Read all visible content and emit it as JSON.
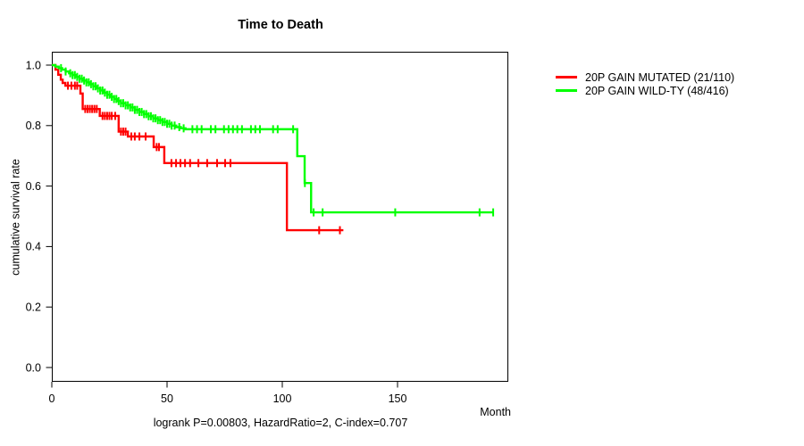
{
  "chart_data": {
    "type": "line",
    "subtype": "kaplan-meier-step",
    "title": "Time to Death",
    "ylabel": "cumulative survival rate",
    "xlabel": "Month",
    "annotation": "logrank P=0.00803, HazardRatio=2, C-index=0.707",
    "x_ticks": [
      0,
      50,
      100,
      150
    ],
    "y_ticks": [
      0,
      0.2,
      0.4,
      0.6,
      0.8,
      1
    ],
    "xlim": [
      0,
      198
    ],
    "ylim": [
      0,
      1
    ],
    "grid": false,
    "legend_position": "right-outside-top",
    "series": [
      {
        "name": "20P GAIN MUTATED (21/110)",
        "color": "#ff0000",
        "steps": [
          [
            0,
            1
          ],
          [
            1.6,
            0.985
          ],
          [
            2.8,
            0.968
          ],
          [
            3.9,
            0.952
          ],
          [
            4.7,
            0.941
          ],
          [
            5.9,
            0.932
          ],
          [
            12.4,
            0.906
          ],
          [
            13.4,
            0.855
          ],
          [
            20.8,
            0.832
          ],
          [
            29,
            0.78
          ],
          [
            33,
            0.764
          ],
          [
            44.2,
            0.729
          ],
          [
            48.8,
            0.676
          ],
          [
            102,
            0.454
          ]
        ],
        "end_month": 126.5,
        "censor_months": [
          7,
          8.5,
          10,
          11,
          14.5,
          15.5,
          16.5,
          17.5,
          18.5,
          19.5,
          22,
          23,
          24,
          25,
          26,
          27.5,
          30,
          31,
          32,
          34.5,
          36,
          38,
          40.7,
          45.5,
          46.5,
          51.9,
          53.9,
          55.8,
          57.8,
          60,
          63.6,
          67.4,
          71.7,
          75.2,
          77.5,
          116,
          125
        ]
      },
      {
        "name": "20P GAIN WILD-TY (48/416)",
        "color": "#00ff00",
        "steps": [
          [
            0,
            1
          ],
          [
            1.5,
            0.995
          ],
          [
            3,
            0.99
          ],
          [
            4.5,
            0.985
          ],
          [
            6,
            0.979
          ],
          [
            7.5,
            0.973
          ],
          [
            9,
            0.967
          ],
          [
            10.5,
            0.961
          ],
          [
            12,
            0.955
          ],
          [
            13.5,
            0.949
          ],
          [
            15,
            0.943
          ],
          [
            16.5,
            0.937
          ],
          [
            18,
            0.93
          ],
          [
            19.5,
            0.923
          ],
          [
            21,
            0.916
          ],
          [
            22.5,
            0.909
          ],
          [
            24,
            0.902
          ],
          [
            25.5,
            0.895
          ],
          [
            27,
            0.888
          ],
          [
            28.5,
            0.881
          ],
          [
            30,
            0.874
          ],
          [
            32,
            0.867
          ],
          [
            34,
            0.86
          ],
          [
            36,
            0.852
          ],
          [
            38,
            0.845
          ],
          [
            40,
            0.838
          ],
          [
            42,
            0.831
          ],
          [
            44,
            0.824
          ],
          [
            46,
            0.818
          ],
          [
            48,
            0.812
          ],
          [
            50,
            0.806
          ],
          [
            52,
            0.8
          ],
          [
            54,
            0.795
          ],
          [
            56,
            0.791
          ],
          [
            58,
            0.788
          ],
          [
            106.5,
            0.699
          ],
          [
            109.7,
            0.61
          ],
          [
            112.5,
            0.513
          ]
        ],
        "end_month": 191.5,
        "censor_months": [
          4,
          6,
          8,
          9,
          10,
          11,
          12,
          13,
          14,
          15,
          16,
          17,
          18,
          19,
          20,
          21,
          22,
          23,
          24,
          25,
          26,
          27,
          28,
          29,
          30,
          31,
          32,
          33,
          34,
          35,
          36,
          37,
          38,
          39,
          40,
          41,
          42,
          43,
          44,
          45,
          46,
          47,
          48,
          49,
          50,
          51,
          52,
          53.3,
          55.3,
          57.2,
          61,
          63,
          65,
          69,
          71,
          74.7,
          76.7,
          78.6,
          80.5,
          82.5,
          86.4,
          88.3,
          90.3,
          96,
          98,
          104.7,
          109.8,
          113.6,
          117.5,
          149,
          185.6,
          191.5
        ]
      }
    ]
  }
}
